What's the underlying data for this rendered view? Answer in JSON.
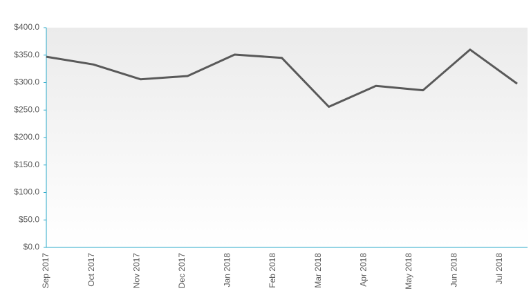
{
  "chart_data": {
    "type": "line",
    "categories": [
      "Sep 2017",
      "Oct 2017",
      "Nov 2017",
      "Dec 2017",
      "Jan 2018",
      "Feb 2018",
      "Mar 2018",
      "Apr 2018",
      "May 2018",
      "Jun 2018",
      "Jul 2018"
    ],
    "series": [
      {
        "name": "",
        "color": "#595959",
        "values": [
          347,
          333,
          306,
          312,
          351,
          345,
          256,
          294,
          286,
          360,
          298
        ]
      }
    ],
    "ylim": [
      0,
      400
    ],
    "yticks": [
      {
        "value": 0,
        "label": "$0.0"
      },
      {
        "value": 50,
        "label": "$50.0"
      },
      {
        "value": 100,
        "label": "$100.0"
      },
      {
        "value": 150,
        "label": "$150.0"
      },
      {
        "value": 200,
        "label": "$200.0"
      },
      {
        "value": 250,
        "label": "$250.0"
      },
      {
        "value": 300,
        "label": "$300.0"
      },
      {
        "value": 350,
        "label": "$350.0"
      },
      {
        "value": 400,
        "label": "$400.0"
      }
    ],
    "axis_color": "#29a8c8"
  }
}
